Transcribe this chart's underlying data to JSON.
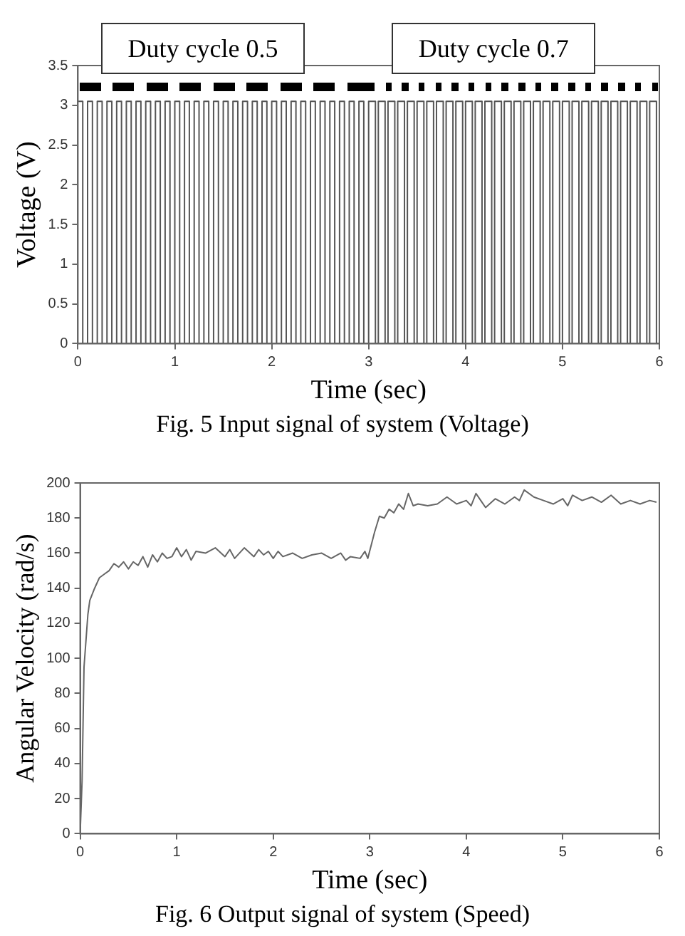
{
  "chart_data": [
    {
      "type": "step",
      "title": "Fig. 5 Input signal of system (Voltage)",
      "xlabel": "Time (sec)",
      "ylabel": "Voltage (V)",
      "xlim": [
        0,
        6
      ],
      "ylim": [
        0,
        3.5
      ],
      "xticks": [
        0,
        1,
        2,
        3,
        4,
        5,
        6
      ],
      "yticks": [
        0,
        0.5,
        1,
        1.5,
        2,
        2.5,
        3,
        3.5
      ],
      "annotations": [
        "Duty cycle 0.5",
        "Duty cycle 0.7"
      ],
      "series": [
        {
          "color": "#555555",
          "x": [
            0,
            0.05,
            0.1,
            0.15,
            0.2,
            0.25,
            0.3,
            0.35,
            0.4,
            0.45,
            0.5,
            0.55,
            0.6,
            0.65,
            0.7,
            0.75,
            0.8,
            0.85,
            0.9,
            0.95,
            1,
            1.05,
            1.1,
            1.15,
            1.2,
            1.25,
            1.3,
            1.35,
            1.4,
            1.45,
            1.5,
            1.55,
            1.6,
            1.65,
            1.7,
            1.75,
            1.8,
            1.85,
            1.9,
            1.95,
            2,
            2.05,
            2.1,
            2.15,
            2.2,
            2.25,
            2.3,
            2.35,
            2.4,
            2.45,
            2.5,
            2.55,
            2.6,
            2.65,
            2.7,
            2.75,
            2.8,
            2.85,
            2.9,
            2.95,
            3,
            3.07,
            3.1,
            3.17,
            3.2,
            3.27,
            3.3,
            3.37,
            3.4,
            3.47,
            3.5,
            3.57,
            3.6,
            3.67,
            3.7,
            3.77,
            3.8,
            3.87,
            3.9,
            3.97,
            4,
            4.07,
            4.1,
            4.17,
            4.2,
            4.27,
            4.3,
            4.37,
            4.4,
            4.47,
            4.5,
            4.57,
            4.6,
            4.67,
            4.7,
            4.77,
            4.8,
            4.87,
            4.9,
            4.97,
            5,
            5.07,
            5.1,
            5.17,
            5.2,
            5.27,
            5.3,
            5.37,
            5.4,
            5.47,
            5.5,
            5.57,
            5.6,
            5.67,
            5.7,
            5.77,
            5.8,
            5.87,
            5.9,
            5.97,
            6
          ],
          "values": [
            3.05,
            0,
            3.05,
            0,
            3.05,
            0,
            3.05,
            0,
            3.05,
            0,
            3.05,
            0,
            3.05,
            0,
            3.05,
            0,
            3.05,
            0,
            3.05,
            0,
            3.05,
            0,
            3.05,
            0,
            3.05,
            0,
            3.05,
            0,
            3.05,
            0,
            3.05,
            0,
            3.05,
            0,
            3.05,
            0,
            3.05,
            0,
            3.05,
            0,
            3.05,
            0,
            3.05,
            0,
            3.05,
            0,
            3.05,
            0,
            3.05,
            0,
            3.05,
            0,
            3.05,
            0,
            3.05,
            0,
            3.05,
            0,
            3.05,
            0,
            3.05,
            0,
            3.05,
            0,
            3.05,
            0,
            3.05,
            0,
            3.05,
            0,
            3.05,
            0,
            3.05,
            0,
            3.05,
            0,
            3.05,
            0,
            3.05,
            0,
            3.05,
            0,
            3.05,
            0,
            3.05,
            0,
            3.05,
            0,
            3.05,
            0,
            3.05,
            0,
            3.05,
            0,
            3.05,
            0,
            3.05,
            0,
            3.05,
            0,
            3.05,
            0,
            3.05,
            0,
            3.05,
            0,
            3.05,
            0,
            3.05,
            0,
            3.05,
            0,
            3.05,
            0,
            3.05,
            0,
            3.05,
            0,
            3.05,
            0,
            3.05
          ]
        }
      ]
    },
    {
      "type": "line",
      "title": "Fig. 6 Output signal of system (Speed)",
      "xlabel": "Time (sec)",
      "ylabel": "Angular Velocity (rad/s)",
      "xlim": [
        0,
        6
      ],
      "ylim": [
        0,
        200
      ],
      "xticks": [
        0,
        1,
        2,
        3,
        4,
        5,
        6
      ],
      "yticks": [
        0,
        20,
        40,
        60,
        80,
        100,
        120,
        140,
        160,
        180,
        200
      ],
      "series": [
        {
          "color": "#666666",
          "x": [
            0,
            0.02,
            0.04,
            0.06,
            0.08,
            0.1,
            0.15,
            0.2,
            0.25,
            0.3,
            0.35,
            0.4,
            0.45,
            0.5,
            0.55,
            0.6,
            0.65,
            0.7,
            0.75,
            0.8,
            0.85,
            0.9,
            0.95,
            1,
            1.05,
            1.1,
            1.15,
            1.2,
            1.3,
            1.4,
            1.5,
            1.55,
            1.6,
            1.7,
            1.8,
            1.85,
            1.9,
            1.95,
            2,
            2.05,
            2.1,
            2.2,
            2.3,
            2.4,
            2.5,
            2.6,
            2.7,
            2.75,
            2.8,
            2.9,
            2.95,
            2.98,
            3.05,
            3.1,
            3.15,
            3.2,
            3.25,
            3.3,
            3.35,
            3.4,
            3.45,
            3.5,
            3.6,
            3.7,
            3.8,
            3.9,
            4,
            4.05,
            4.1,
            4.15,
            4.2,
            4.3,
            4.4,
            4.5,
            4.55,
            4.6,
            4.7,
            4.8,
            4.9,
            5,
            5.05,
            5.1,
            5.2,
            5.3,
            5.4,
            5.5,
            5.6,
            5.7,
            5.8,
            5.9,
            5.97
          ],
          "values": [
            0,
            30,
            95,
            110,
            125,
            133,
            140,
            146,
            148,
            150,
            154,
            152,
            155,
            151,
            155,
            153,
            158,
            152,
            159,
            155,
            160,
            157,
            158,
            163,
            158,
            162,
            156,
            161,
            160,
            163,
            158,
            162,
            157,
            163,
            158,
            162,
            159,
            161,
            157,
            161,
            158,
            160,
            157,
            159,
            160,
            157,
            160,
            156,
            158,
            157,
            161,
            157,
            172,
            181,
            180,
            185,
            183,
            188,
            185,
            194,
            187,
            188,
            187,
            188,
            192,
            188,
            190,
            187,
            194,
            190,
            186,
            191,
            188,
            192,
            190,
            196,
            192,
            190,
            188,
            191,
            187,
            193,
            190,
            192,
            189,
            193,
            188,
            190,
            188,
            190,
            189
          ]
        }
      ]
    }
  ]
}
